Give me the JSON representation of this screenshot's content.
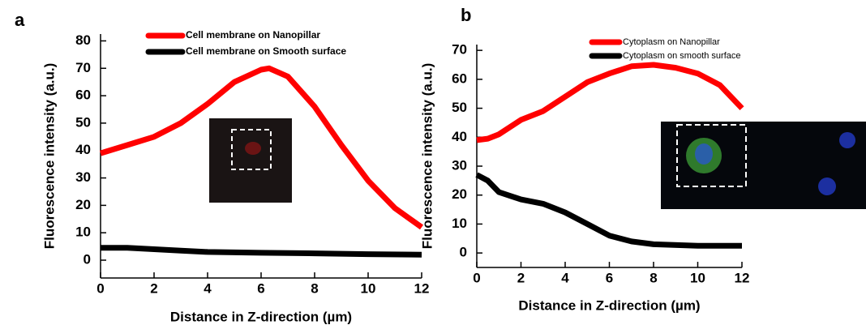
{
  "chart_data": [
    {
      "type": "line",
      "panel_label": "a",
      "x_label": "Distance in Z-direction (µm)",
      "y_label": "Fluorescence intensity (a.u.)",
      "xlim": [
        0,
        12
      ],
      "xticks": [
        0,
        2,
        4,
        6,
        8,
        10,
        12
      ],
      "ylim": [
        -6.5,
        82.5
      ],
      "yticks": [
        0,
        10,
        20,
        30,
        40,
        50,
        60,
        70,
        80
      ],
      "series": [
        {
          "name": "Cell membrane on Nanopillar",
          "color": "#ff0000",
          "x": [
            0,
            1,
            2,
            3,
            4,
            5,
            6,
            6.3,
            7,
            8,
            9,
            10,
            11,
            12
          ],
          "values": [
            39,
            42,
            45,
            50,
            57,
            65,
            69.5,
            70,
            67,
            56,
            42,
            29,
            19,
            12
          ]
        },
        {
          "name": "Cell membrane on Smooth surface",
          "color": "#000000",
          "x": [
            0,
            1,
            2,
            3,
            4,
            6,
            8,
            10,
            12
          ],
          "values": [
            4.5,
            4.5,
            4,
            3.5,
            3,
            2.7,
            2.5,
            2.2,
            2
          ]
        }
      ]
    },
    {
      "type": "line",
      "panel_label": "b",
      "x_label": "Distance in Z-direction (µm)",
      "y_label": "Fluorescence intensity (a.u.)",
      "xlim": [
        0,
        12
      ],
      "xticks": [
        0,
        2,
        4,
        6,
        8,
        10,
        12
      ],
      "ylim": [
        -5,
        72
      ],
      "yticks": [
        0,
        10,
        20,
        30,
        40,
        50,
        60,
        70
      ],
      "series": [
        {
          "name": "Cytoplasm on Nanopillar",
          "color": "#ff0000",
          "x": [
            0,
            0.5,
            1,
            2,
            3,
            4,
            5,
            6,
            7,
            8,
            9,
            10,
            11,
            12
          ],
          "values": [
            39,
            39.5,
            41,
            46,
            49,
            54,
            59,
            62,
            64.5,
            65,
            64,
            62,
            58,
            50
          ]
        },
        {
          "name": "Cytoplasm on smooth surface",
          "color": "#000000",
          "x": [
            0,
            0.5,
            1,
            2,
            3,
            4,
            5,
            6,
            7,
            8,
            10,
            12
          ],
          "values": [
            27,
            25,
            21,
            18.5,
            17,
            14,
            10,
            6,
            4,
            3,
            2.5,
            2.5
          ]
        }
      ]
    }
  ]
}
